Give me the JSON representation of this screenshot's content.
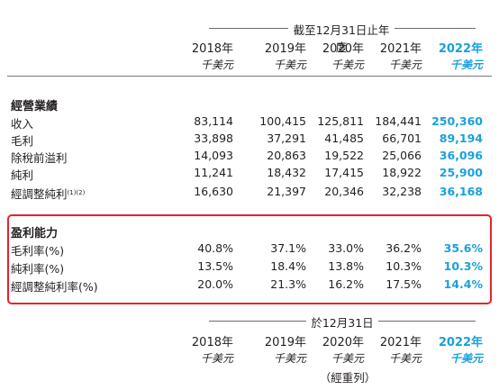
{
  "top_header": {
    "title": "截至12月31日止年度",
    "years": [
      "2018年",
      "2019年",
      "2020年",
      "2021年",
      "2022年"
    ],
    "unit": "千美元"
  },
  "operating": {
    "title": "經營業績",
    "rows": [
      {
        "label": "收入",
        "sup": "",
        "values": [
          "83,114",
          "100,415",
          "125,811",
          "184,441",
          "250,360"
        ]
      },
      {
        "label": "毛利",
        "sup": "",
        "values": [
          "33,898",
          "37,291",
          "41,485",
          "66,701",
          "89,194"
        ]
      },
      {
        "label": "除稅前溢利",
        "sup": "",
        "values": [
          "14,093",
          "20,863",
          "19,522",
          "25,066",
          "36,096"
        ]
      },
      {
        "label": "純利",
        "sup": "",
        "values": [
          "11,241",
          "18,432",
          "17,415",
          "18,922",
          "25,900"
        ]
      },
      {
        "label": "經調整純利",
        "sup": "(1)(2)",
        "values": [
          "16,630",
          "21,397",
          "20,346",
          "32,238",
          "36,168"
        ]
      }
    ]
  },
  "profitability": {
    "title": "盈利能力",
    "rows": [
      {
        "label": "毛利率(%)",
        "values": [
          "40.8%",
          "37.1%",
          "33.0%",
          "36.2%",
          "35.6%"
        ]
      },
      {
        "label": "純利率(%)",
        "values": [
          "13.5%",
          "18.4%",
          "13.8%",
          "10.3%",
          "10.3%"
        ]
      },
      {
        "label": "經調整純利率(%)",
        "values": [
          "20.0%",
          "21.3%",
          "16.2%",
          "17.5%",
          "14.4%"
        ]
      }
    ]
  },
  "bottom_header": {
    "title": "於12月31日",
    "years": [
      "2018年",
      "2019年",
      "2020年",
      "2021年",
      "2022年"
    ],
    "unit": "千美元",
    "note": "（經重列）"
  },
  "colors": {
    "highlight": "#1ba0dc",
    "box": "#e5242d"
  }
}
